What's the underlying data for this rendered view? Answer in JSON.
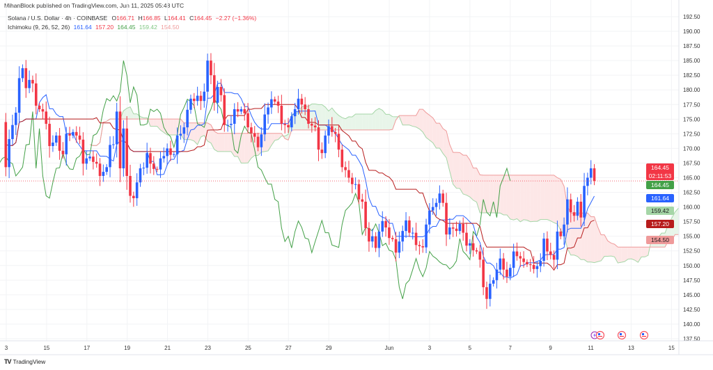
{
  "header": {
    "published": "MihanBlock published on TradingView.com, Jun 11, 2025 05:48 UTC",
    "symbol": "Solana / U.S. Dollar · 4h · COINBASE",
    "open_label": "O",
    "open": "166.71",
    "high_label": "H",
    "high": "166.85",
    "low_label": "L",
    "low": "164.41",
    "close_label": "C",
    "close": "164.45",
    "change": "−2.27 (−1.36%)",
    "indicator": "Ichimoku (9, 26, 52, 26)",
    "ind_values": [
      "161.64",
      "157.20",
      "164.45",
      "159.42",
      "154.50"
    ]
  },
  "price_tags": {
    "last": "164.45",
    "countdown": "02:11:53",
    "lagging": "164.45",
    "conversion": "161.64",
    "span_a": "159.42",
    "base": "157.20",
    "span_b": "154.50"
  },
  "colors": {
    "up": "#2962ff",
    "down": "#f23645",
    "tenkan": "#2962ff",
    "kijun": "#b71c1c",
    "chikou": "#43a047",
    "span_a": "#a5d6a7",
    "span_b": "#ef9a9a",
    "cloud_up": "#e8f5e9",
    "cloud_down": "#fde7e7"
  },
  "footer": {
    "brand": "TradingView"
  },
  "chart_data": {
    "type": "candlestick",
    "title": "Solana / U.S. Dollar · 4h · COINBASE",
    "ylim": [
      137.5,
      192.5
    ],
    "y_ticks": [
      "192.50",
      "190.00",
      "187.50",
      "185.00",
      "182.50",
      "180.00",
      "177.50",
      "175.00",
      "172.50",
      "170.00",
      "167.50",
      "165.00",
      "162.50",
      "160.00",
      "157.50",
      "155.00",
      "152.50",
      "150.00",
      "147.50",
      "145.00",
      "142.50",
      "140.00",
      "137.50"
    ],
    "x_ticks": [
      {
        "label": "3",
        "day": 0
      },
      {
        "label": "15",
        "day": 2
      },
      {
        "label": "17",
        "day": 4
      },
      {
        "label": "19",
        "day": 6
      },
      {
        "label": "21",
        "day": 8
      },
      {
        "label": "23",
        "day": 10
      },
      {
        "label": "25",
        "day": 12
      },
      {
        "label": "27",
        "day": 14
      },
      {
        "label": "29",
        "day": 16
      },
      {
        "label": "Jun",
        "day": 19
      },
      {
        "label": "3",
        "day": 21
      },
      {
        "label": "5",
        "day": 23
      },
      {
        "label": "7",
        "day": 25
      },
      {
        "label": "9",
        "day": 27
      },
      {
        "label": "11",
        "day": 29
      },
      {
        "label": "13",
        "day": 31
      },
      {
        "label": "15",
        "day": 33
      }
    ],
    "candles_per_day": 6,
    "first_open": 174.5,
    "close": [
      166.8,
      171.6,
      174,
      176.1,
      182,
      183.7,
      180.3,
      181.7,
      181.1,
      177.3,
      176.7,
      176.3,
      174.2,
      170.4,
      171,
      172.2,
      169.6,
      169,
      172.5,
      172.2,
      172.8,
      172.2,
      171.5,
      167.4,
      168.3,
      168.6,
      167.7,
      167.4,
      165.3,
      166,
      166.8,
      170.6,
      170.7,
      176.3,
      166.6,
      173.4,
      165.3,
      161.9,
      161.5,
      164.2,
      166.6,
      166.7,
      169.2,
      167.4,
      166.5,
      166.4,
      168.3,
      168.7,
      170,
      168.9,
      169,
      172.2,
      172.5,
      173.6,
      176.6,
      178.5,
      178.1,
      179,
      178.1,
      179.7,
      185,
      182.5,
      177.8,
      180.5,
      179.1,
      174,
      174,
      174.2,
      176.7,
      176.3,
      176.7,
      176,
      173.6,
      172.6,
      172,
      170.2,
      172.4,
      175.8,
      177,
      178.4,
      178,
      177.3,
      174.2,
      174,
      173.6,
      175.5,
      176.7,
      178.5,
      177.5,
      176.7,
      174.2,
      173.9,
      173.6,
      169.8,
      169.2,
      172.2,
      173.8,
      172.8,
      172.5,
      169.8,
      166.8,
      166.3,
      165,
      163.9,
      163.9,
      161.3,
      160.9,
      156.4,
      154.1,
      155,
      153,
      155.8,
      157.6,
      156.5,
      154.7,
      154.5,
      152.2,
      154.1,
      155.9,
      157.7,
      155.6,
      155.6,
      153.5,
      153.3,
      153.1,
      157,
      159.4,
      160,
      160.7,
      162.3,
      160.7,
      155.3,
      156.5,
      156.3,
      155.9,
      157.1,
      155.6,
      153.4,
      153.8,
      152.6,
      152.4,
      151,
      146.3,
      144.3,
      146.9,
      147.5,
      149.3,
      151.2,
      149.3,
      148.1,
      149.6,
      152.4,
      151.6,
      151.2,
      150.6,
      150.2,
      150.1,
      149.4,
      149.9,
      150.8,
      154.6,
      152.4,
      151.8,
      151,
      155.8,
      155,
      157,
      161.3,
      159.1,
      158.5,
      160.9,
      158.2,
      163.6,
      165,
      166.6,
      164.45
    ],
    "ichimoku": {
      "conversion": 9,
      "base": 26,
      "span_b": 52,
      "displacement": 26
    },
    "current_price": 164.45,
    "events": [
      "crypto-event",
      "us-economic-event",
      "us-economic-event",
      "us-economic-event"
    ]
  }
}
